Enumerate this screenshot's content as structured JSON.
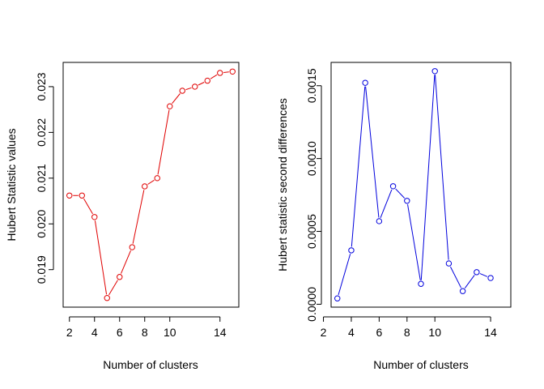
{
  "chart_data": [
    {
      "type": "line",
      "x": [
        2,
        3,
        4,
        5,
        6,
        7,
        8,
        9,
        10,
        11,
        12,
        13,
        14,
        15
      ],
      "y": [
        0.02062,
        0.02062,
        0.02015,
        0.01838,
        0.01884,
        0.01949,
        0.02082,
        0.021,
        0.02257,
        0.02291,
        0.023,
        0.02313,
        0.0233,
        0.02333
      ],
      "xlabel": "Number of clusters",
      "ylabel": "Hubert Statistic values",
      "xlim": [
        1.5,
        15.5
      ],
      "ylim": [
        0.01818,
        0.02353
      ],
      "xticks": [
        2,
        4,
        6,
        8,
        10,
        14
      ],
      "yticks": [
        0.019,
        0.02,
        0.021,
        0.022,
        0.023
      ],
      "ytick_labels": [
        "0.019",
        "0.020",
        "0.021",
        "0.022",
        "0.023"
      ],
      "color": "#e00000",
      "grid": false
    },
    {
      "type": "line",
      "x": [
        3,
        4,
        5,
        6,
        7,
        8,
        9,
        10,
        11,
        12,
        13,
        14
      ],
      "y": [
        4e-05,
        0.00037,
        0.00152,
        0.00057,
        0.00081,
        0.00071,
        0.00014,
        0.0016,
        0.00028,
        9e-05,
        0.00022,
        0.00018
      ],
      "xlabel": "Number of clusters",
      "ylabel": "Hubert statistic second differences",
      "xlim": [
        2.55,
        15.45
      ],
      "ylim": [
        -2e-05,
        0.00166
      ],
      "xticks": [
        2,
        4,
        6,
        8,
        10,
        14
      ],
      "yticks": [
        0.0,
        0.0005,
        0.001,
        0.0015
      ],
      "ytick_labels": [
        "0.0000",
        "0.0005",
        "0.0010",
        "0.0015"
      ],
      "color": "#0000dd",
      "grid": false
    }
  ]
}
